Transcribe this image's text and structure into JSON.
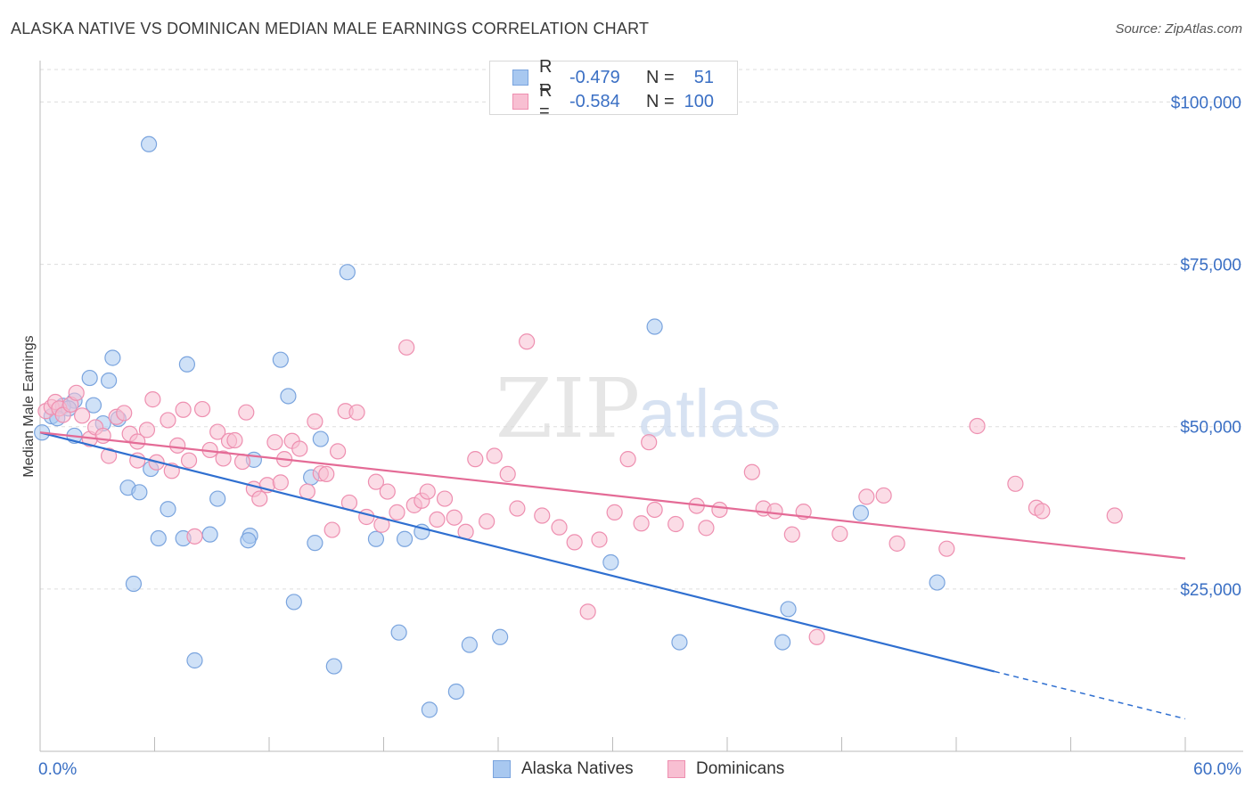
{
  "title": "ALASKA NATIVE VS DOMINICAN MEDIAN MALE EARNINGS CORRELATION CHART",
  "source": "Source: ZipAtlas.com",
  "watermark": {
    "zip": "ZIP",
    "atlas": "atlas"
  },
  "legend_top": [
    {
      "r_label": "R =",
      "r_value": "-0.479",
      "n_label": "N =",
      "n_value": "51",
      "color": "#a8c8f0",
      "border": "#7aa4de"
    },
    {
      "r_label": "R =",
      "r_value": "-0.584",
      "n_label": "N =",
      "n_value": "100",
      "color": "#f8bfd2",
      "border": "#ee8fb0"
    }
  ],
  "legend_bottom": [
    {
      "label": "Alaska Natives",
      "color": "#a8c8f0",
      "border": "#7aa4de"
    },
    {
      "label": "Dominicans",
      "color": "#f8bfd2",
      "border": "#ee8fb0"
    }
  ],
  "chart_data": {
    "type": "scatter",
    "title": "ALASKA NATIVE VS DOMINICAN MEDIAN MALE EARNINGS CORRELATION CHART",
    "xlabel": "",
    "ylabel": "Median Male Earnings",
    "xlim": [
      0,
      60
    ],
    "ylim": [
      0,
      105000
    ],
    "x_tick_labels": [
      {
        "value": 0,
        "label": "0.0%"
      },
      {
        "value": 60,
        "label": "60.0%"
      }
    ],
    "y_tick_labels": [
      {
        "value": 25000,
        "label": "$25,000"
      },
      {
        "value": 50000,
        "label": "$50,000"
      },
      {
        "value": 75000,
        "label": "$75,000"
      },
      {
        "value": 100000,
        "label": "$100,000"
      }
    ],
    "grid": true,
    "series": [
      {
        "name": "Alaska Natives",
        "color": "#a8c8f0",
        "line_color": "#2f6fd0",
        "trend": {
          "x0": 0,
          "y0": 49100,
          "x1": 50.0,
          "y1": 12300,
          "dash_to_x": 60,
          "dash_to_y": 5000
        },
        "points": [
          [
            5.7,
            93500
          ],
          [
            16.1,
            73800
          ],
          [
            32.2,
            65400
          ],
          [
            3.8,
            60600
          ],
          [
            7.7,
            59600
          ],
          [
            12.6,
            60300
          ],
          [
            2.6,
            57500
          ],
          [
            3.6,
            57100
          ],
          [
            13.0,
            54700
          ],
          [
            1.8,
            54000
          ],
          [
            1.2,
            53200
          ],
          [
            2.8,
            53300
          ],
          [
            0.6,
            51600
          ],
          [
            0.9,
            51300
          ],
          [
            4.1,
            51200
          ],
          [
            3.3,
            50500
          ],
          [
            0.1,
            49100
          ],
          [
            1.8,
            48600
          ],
          [
            14.7,
            48100
          ],
          [
            11.2,
            44900
          ],
          [
            5.8,
            43500
          ],
          [
            14.2,
            42200
          ],
          [
            4.6,
            40600
          ],
          [
            5.2,
            39900
          ],
          [
            9.3,
            38900
          ],
          [
            6.7,
            37300
          ],
          [
            43.0,
            36700
          ],
          [
            8.9,
            33400
          ],
          [
            11.0,
            33200
          ],
          [
            6.2,
            32800
          ],
          [
            7.5,
            32800
          ],
          [
            10.9,
            32500
          ],
          [
            17.6,
            32700
          ],
          [
            19.1,
            32700
          ],
          [
            14.4,
            32100
          ],
          [
            20.0,
            33800
          ],
          [
            29.9,
            29100
          ],
          [
            47.0,
            26000
          ],
          [
            4.9,
            25800
          ],
          [
            13.3,
            23000
          ],
          [
            39.2,
            21900
          ],
          [
            18.8,
            18300
          ],
          [
            24.1,
            17600
          ],
          [
            22.5,
            16400
          ],
          [
            33.5,
            16800
          ],
          [
            38.9,
            16800
          ],
          [
            8.1,
            14000
          ],
          [
            15.4,
            13100
          ],
          [
            21.8,
            9200
          ],
          [
            20.4,
            6400
          ],
          [
            1.5,
            52800
          ]
        ]
      },
      {
        "name": "Dominicans",
        "color": "#f8bfd2",
        "line_color": "#e46b96",
        "trend": {
          "x0": 0,
          "y0": 49100,
          "x1": 60,
          "y1": 29700
        },
        "points": [
          [
            0.3,
            52400
          ],
          [
            0.6,
            53000
          ],
          [
            0.8,
            53800
          ],
          [
            1.0,
            52800
          ],
          [
            1.2,
            51800
          ],
          [
            1.6,
            53400
          ],
          [
            1.9,
            55200
          ],
          [
            2.2,
            51700
          ],
          [
            2.6,
            48100
          ],
          [
            2.9,
            49900
          ],
          [
            3.3,
            48600
          ],
          [
            3.6,
            45500
          ],
          [
            4.0,
            51500
          ],
          [
            4.4,
            52100
          ],
          [
            4.7,
            48900
          ],
          [
            5.1,
            47700
          ],
          [
            5.1,
            44800
          ],
          [
            5.6,
            49500
          ],
          [
            5.9,
            54200
          ],
          [
            6.1,
            44500
          ],
          [
            6.7,
            51000
          ],
          [
            6.9,
            43200
          ],
          [
            7.2,
            47100
          ],
          [
            7.5,
            52600
          ],
          [
            7.8,
            44800
          ],
          [
            8.1,
            33100
          ],
          [
            8.5,
            52700
          ],
          [
            8.9,
            46400
          ],
          [
            9.3,
            49200
          ],
          [
            9.6,
            45100
          ],
          [
            9.9,
            47800
          ],
          [
            10.2,
            47900
          ],
          [
            10.6,
            44600
          ],
          [
            10.8,
            52200
          ],
          [
            11.2,
            40400
          ],
          [
            11.5,
            38900
          ],
          [
            11.9,
            41000
          ],
          [
            12.3,
            47600
          ],
          [
            12.6,
            41400
          ],
          [
            12.8,
            45000
          ],
          [
            13.2,
            47800
          ],
          [
            13.6,
            46600
          ],
          [
            14.0,
            40000
          ],
          [
            14.4,
            50800
          ],
          [
            14.7,
            42800
          ],
          [
            15.0,
            42700
          ],
          [
            15.3,
            34100
          ],
          [
            15.6,
            46200
          ],
          [
            16.0,
            52400
          ],
          [
            16.2,
            38300
          ],
          [
            16.6,
            52200
          ],
          [
            17.1,
            36100
          ],
          [
            17.6,
            41500
          ],
          [
            17.9,
            34900
          ],
          [
            18.2,
            40000
          ],
          [
            18.7,
            36800
          ],
          [
            19.2,
            62200
          ],
          [
            19.6,
            37900
          ],
          [
            20.0,
            38600
          ],
          [
            20.3,
            40000
          ],
          [
            20.8,
            35700
          ],
          [
            21.2,
            38900
          ],
          [
            21.7,
            36000
          ],
          [
            22.3,
            33800
          ],
          [
            22.8,
            45000
          ],
          [
            23.4,
            35400
          ],
          [
            23.8,
            45500
          ],
          [
            24.5,
            42700
          ],
          [
            25.0,
            37400
          ],
          [
            25.5,
            63100
          ],
          [
            26.3,
            36300
          ],
          [
            27.2,
            34500
          ],
          [
            28.0,
            32200
          ],
          [
            28.7,
            21500
          ],
          [
            29.3,
            32600
          ],
          [
            30.1,
            36800
          ],
          [
            30.8,
            45000
          ],
          [
            31.5,
            35100
          ],
          [
            31.9,
            47600
          ],
          [
            32.2,
            37200
          ],
          [
            33.3,
            35000
          ],
          [
            34.4,
            37800
          ],
          [
            34.9,
            34400
          ],
          [
            35.6,
            37200
          ],
          [
            37.3,
            43000
          ],
          [
            37.9,
            37400
          ],
          [
            38.5,
            37000
          ],
          [
            39.4,
            33400
          ],
          [
            40.0,
            36900
          ],
          [
            40.7,
            17600
          ],
          [
            41.9,
            33500
          ],
          [
            43.3,
            39200
          ],
          [
            44.2,
            39400
          ],
          [
            44.9,
            32000
          ],
          [
            47.5,
            31200
          ],
          [
            49.1,
            50100
          ],
          [
            51.1,
            41200
          ],
          [
            52.2,
            37500
          ],
          [
            52.5,
            37000
          ],
          [
            56.3,
            36300
          ]
        ]
      }
    ]
  }
}
